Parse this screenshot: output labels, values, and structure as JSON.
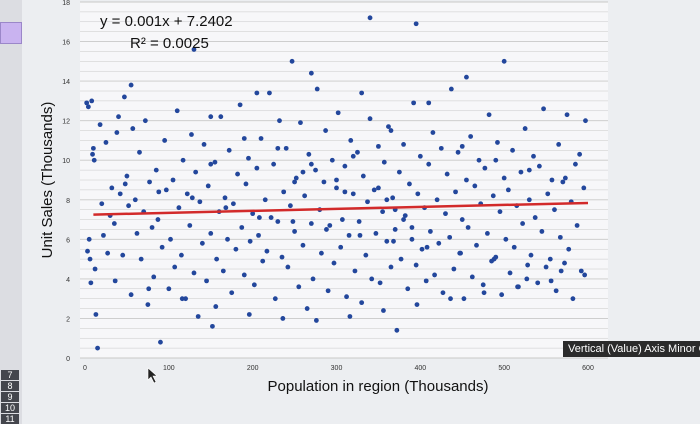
{
  "row_numbers": [
    "7",
    "8",
    "9",
    "10",
    "11"
  ],
  "tooltip": "Vertical (Value) Axis Minor Gridlines",
  "colors": {
    "points": "#23479c",
    "trendline": "#d22a2a",
    "grid": "#c8c8c8",
    "plot_bg": "#f7f7f9"
  },
  "chart_data": {
    "type": "scatter",
    "title": "",
    "xlabel": "Population in region (Thousands)",
    "ylabel": "Unit Sales (Thousands)",
    "xlim": [
      0,
      600
    ],
    "ylim": [
      0,
      18
    ],
    "x_ticks": [
      "0",
      "100",
      "200",
      "300",
      "400",
      "500",
      "600"
    ],
    "y_ticks": [
      "0",
      "2",
      "4",
      "6",
      "8",
      "10",
      "12",
      "14",
      "16",
      "18"
    ],
    "equation": "y = 0.001x + 7.2402",
    "r_squared": "R² = 0.0025",
    "trendline": {
      "slope": 0.001,
      "intercept": 7.2402
    },
    "grid": "minor horizontal gridlines",
    "series": [
      {
        "points": [
          [
            2,
            12.9
          ],
          [
            4,
            12.7
          ],
          [
            8,
            13.0
          ],
          [
            5,
            6.0
          ],
          [
            10,
            10.6
          ],
          [
            3,
            5.4
          ],
          [
            6,
            5.0
          ],
          [
            12,
            4.5
          ],
          [
            7,
            3.8
          ],
          [
            9,
            10.3
          ],
          [
            11,
            10.0
          ],
          [
            13,
            2.2
          ],
          [
            15,
            0.5
          ],
          [
            18,
            11.8
          ],
          [
            20,
            7.8
          ],
          [
            22,
            6.2
          ],
          [
            25,
            10.9
          ],
          [
            27,
            5.3
          ],
          [
            30,
            7.2
          ],
          [
            32,
            8.6
          ],
          [
            35,
            6.8
          ],
          [
            38,
            11.4
          ],
          [
            40,
            12.2
          ],
          [
            42,
            8.3
          ],
          [
            45,
            5.2
          ],
          [
            47,
            13.2
          ],
          [
            50,
            9.2
          ],
          [
            52,
            7.7
          ],
          [
            55,
            3.2
          ],
          [
            57,
            11.6
          ],
          [
            60,
            8.0
          ],
          [
            62,
            6.3
          ],
          [
            65,
            10.4
          ],
          [
            67,
            5.0
          ],
          [
            70,
            7.4
          ],
          [
            72,
            12.0
          ],
          [
            75,
            2.7
          ],
          [
            77,
            8.9
          ],
          [
            80,
            6.6
          ],
          [
            82,
            4.1
          ],
          [
            85,
            9.5
          ],
          [
            87,
            7.0
          ],
          [
            90,
            0.8
          ],
          [
            92,
            5.6
          ],
          [
            95,
            11.0
          ],
          [
            97,
            8.5
          ],
          [
            100,
            3.5
          ],
          [
            102,
            6.0
          ],
          [
            105,
            9.0
          ],
          [
            107,
            4.6
          ],
          [
            110,
            12.5
          ],
          [
            112,
            7.6
          ],
          [
            115,
            5.2
          ],
          [
            117,
            10.0
          ],
          [
            120,
            3.0
          ],
          [
            122,
            8.3
          ],
          [
            125,
            6.7
          ],
          [
            127,
            11.3
          ],
          [
            130,
            4.3
          ],
          [
            132,
            9.4
          ],
          [
            135,
            2.1
          ],
          [
            137,
            7.9
          ],
          [
            140,
            5.8
          ],
          [
            142,
            10.8
          ],
          [
            145,
            3.9
          ],
          [
            147,
            8.7
          ],
          [
            150,
            6.3
          ],
          [
            152,
            1.6
          ],
          [
            155,
            9.9
          ],
          [
            157,
            5.0
          ],
          [
            160,
            7.4
          ],
          [
            162,
            12.2
          ],
          [
            165,
            4.4
          ],
          [
            167,
            8.1
          ],
          [
            170,
            6.0
          ],
          [
            172,
            10.5
          ],
          [
            175,
            3.3
          ],
          [
            177,
            7.8
          ],
          [
            180,
            5.5
          ],
          [
            182,
            9.3
          ],
          [
            185,
            12.8
          ],
          [
            187,
            6.6
          ],
          [
            190,
            4.2
          ],
          [
            192,
            8.8
          ],
          [
            195,
            10.1
          ],
          [
            197,
            5.9
          ],
          [
            200,
            7.3
          ],
          [
            202,
            3.7
          ],
          [
            205,
            9.6
          ],
          [
            207,
            6.2
          ],
          [
            210,
            11.1
          ],
          [
            212,
            4.9
          ],
          [
            215,
            8.0
          ],
          [
            217,
            5.4
          ],
          [
            220,
            13.4
          ],
          [
            222,
            7.1
          ],
          [
            225,
            9.8
          ],
          [
            227,
            3.0
          ],
          [
            230,
            6.9
          ],
          [
            232,
            12.0
          ],
          [
            235,
            5.1
          ],
          [
            237,
            8.4
          ],
          [
            240,
            10.6
          ],
          [
            242,
            4.6
          ],
          [
            245,
            7.7
          ],
          [
            247,
            15.0
          ],
          [
            250,
            6.4
          ],
          [
            252,
            9.1
          ],
          [
            255,
            3.6
          ],
          [
            257,
            11.9
          ],
          [
            260,
            5.7
          ],
          [
            262,
            8.2
          ],
          [
            265,
            2.5
          ],
          [
            267,
            10.3
          ],
          [
            270,
            6.8
          ],
          [
            272,
            4.0
          ],
          [
            275,
            9.5
          ],
          [
            277,
            13.6
          ],
          [
            280,
            7.5
          ],
          [
            282,
            5.3
          ],
          [
            285,
            8.9
          ],
          [
            287,
            11.5
          ],
          [
            290,
            3.4
          ],
          [
            292,
            6.7
          ],
          [
            295,
            10.0
          ],
          [
            297,
            4.8
          ],
          [
            300,
            8.6
          ],
          [
            302,
            12.4
          ],
          [
            305,
            5.6
          ],
          [
            307,
            7.0
          ],
          [
            310,
            9.7
          ],
          [
            312,
            3.1
          ],
          [
            315,
            6.2
          ],
          [
            317,
            11.0
          ],
          [
            320,
            8.3
          ],
          [
            322,
            4.4
          ],
          [
            325,
            10.4
          ],
          [
            327,
            6.9
          ],
          [
            330,
            2.8
          ],
          [
            332,
            9.2
          ],
          [
            335,
            5.2
          ],
          [
            337,
            7.9
          ],
          [
            340,
            12.1
          ],
          [
            342,
            4.0
          ],
          [
            345,
            8.5
          ],
          [
            347,
            6.3
          ],
          [
            350,
            10.7
          ],
          [
            352,
            3.8
          ],
          [
            355,
            7.4
          ],
          [
            357,
            9.9
          ],
          [
            360,
            5.9
          ],
          [
            362,
            11.7
          ],
          [
            365,
            4.6
          ],
          [
            367,
            8.1
          ],
          [
            370,
            6.5
          ],
          [
            372,
            1.4
          ],
          [
            375,
            9.4
          ],
          [
            377,
            5.0
          ],
          [
            380,
            10.8
          ],
          [
            382,
            7.2
          ],
          [
            385,
            3.5
          ],
          [
            387,
            8.8
          ],
          [
            390,
            6.0
          ],
          [
            392,
            12.9
          ],
          [
            395,
            4.7
          ],
          [
            397,
            8.3
          ],
          [
            400,
            10.2
          ],
          [
            402,
            5.5
          ],
          [
            405,
            7.6
          ],
          [
            407,
            3.9
          ],
          [
            410,
            9.8
          ],
          [
            412,
            6.4
          ],
          [
            415,
            11.4
          ],
          [
            417,
            4.2
          ],
          [
            420,
            8.0
          ],
          [
            422,
            5.8
          ],
          [
            425,
            10.6
          ],
          [
            427,
            3.3
          ],
          [
            430,
            7.3
          ],
          [
            432,
            9.3
          ],
          [
            435,
            6.1
          ],
          [
            437,
            13.6
          ],
          [
            440,
            4.5
          ],
          [
            442,
            8.4
          ],
          [
            445,
            10.4
          ],
          [
            447,
            5.3
          ],
          [
            450,
            7.0
          ],
          [
            452,
            3.0
          ],
          [
            455,
            9.0
          ],
          [
            457,
            6.6
          ],
          [
            460,
            11.2
          ],
          [
            462,
            4.1
          ],
          [
            465,
            8.7
          ],
          [
            467,
            5.7
          ],
          [
            470,
            10.0
          ],
          [
            472,
            7.8
          ],
          [
            475,
            3.7
          ],
          [
            477,
            9.6
          ],
          [
            480,
            6.3
          ],
          [
            482,
            12.3
          ],
          [
            485,
            4.9
          ],
          [
            487,
            8.2
          ],
          [
            490,
            5.1
          ],
          [
            492,
            10.9
          ],
          [
            495,
            7.4
          ],
          [
            497,
            3.2
          ],
          [
            500,
            9.1
          ],
          [
            502,
            6.0
          ],
          [
            505,
            8.5
          ],
          [
            507,
            4.3
          ],
          [
            510,
            10.5
          ],
          [
            512,
            5.6
          ],
          [
            515,
            7.7
          ],
          [
            517,
            3.6
          ],
          [
            520,
            9.4
          ],
          [
            522,
            6.8
          ],
          [
            525,
            11.6
          ],
          [
            527,
            4.0
          ],
          [
            530,
            8.0
          ],
          [
            532,
            5.2
          ],
          [
            535,
            10.2
          ],
          [
            537,
            7.1
          ],
          [
            540,
            3.8
          ],
          [
            542,
            9.7
          ],
          [
            545,
            6.4
          ],
          [
            547,
            12.6
          ],
          [
            550,
            4.6
          ],
          [
            552,
            8.3
          ],
          [
            555,
            5.0
          ],
          [
            557,
            9.0
          ],
          [
            560,
            7.5
          ],
          [
            562,
            3.4
          ],
          [
            565,
            10.8
          ],
          [
            567,
            6.1
          ],
          [
            570,
            8.9
          ],
          [
            572,
            4.8
          ],
          [
            575,
            12.3
          ],
          [
            577,
            5.5
          ],
          [
            580,
            7.9
          ],
          [
            582,
            3.0
          ],
          [
            585,
            9.8
          ],
          [
            587,
            6.7
          ],
          [
            590,
            10.3
          ],
          [
            592,
            4.4
          ],
          [
            595,
            8.6
          ],
          [
            597,
            12.0
          ],
          [
            340,
            17.2
          ],
          [
            395,
            16.9
          ],
          [
            130,
            15.6
          ],
          [
            500,
            15.0
          ],
          [
            270,
            14.4
          ],
          [
            455,
            14.2
          ],
          [
            55,
            13.8
          ],
          [
            205,
            13.4
          ],
          [
            330,
            13.4
          ],
          [
            150,
            12.2
          ],
          [
            190,
            11.1
          ],
          [
            230,
            10.6
          ],
          [
            270,
            9.8
          ],
          [
            320,
            10.2
          ],
          [
            365,
            11.5
          ],
          [
            410,
            12.9
          ],
          [
            450,
            10.7
          ],
          [
            490,
            10.0
          ],
          [
            530,
            9.5
          ],
          [
            573,
            9.1
          ],
          [
            48,
            8.8
          ],
          [
            88,
            8.4
          ],
          [
            128,
            8.1
          ],
          [
            168,
            7.6
          ],
          [
            208,
            7.1
          ],
          [
            248,
            6.9
          ],
          [
            288,
            6.5
          ],
          [
            328,
            6.2
          ],
          [
            368,
            5.9
          ],
          [
            408,
            5.6
          ],
          [
            448,
            5.3
          ],
          [
            488,
            5.0
          ],
          [
            528,
            4.7
          ],
          [
            568,
            4.4
          ],
          [
            36,
            3.9
          ],
          [
            76,
            3.5
          ],
          [
            116,
            3.0
          ],
          [
            156,
            2.6
          ],
          [
            196,
            2.2
          ],
          [
            236,
            2.0
          ],
          [
            276,
            1.9
          ],
          [
            316,
            2.1
          ],
          [
            356,
            2.4
          ],
          [
            396,
            2.7
          ],
          [
            436,
            3.0
          ],
          [
            476,
            3.3
          ],
          [
            516,
            3.6
          ],
          [
            556,
            3.9
          ],
          [
            596,
            4.2
          ],
          [
            350,
            8.6
          ],
          [
            360,
            8.0
          ],
          [
            370,
            7.5
          ],
          [
            380,
            7.0
          ],
          [
            390,
            6.6
          ],
          [
            300,
            9.0
          ],
          [
            310,
            8.4
          ],
          [
            250,
            8.9
          ],
          [
            260,
            9.4
          ],
          [
            150,
            9.8
          ]
        ]
      }
    ]
  }
}
